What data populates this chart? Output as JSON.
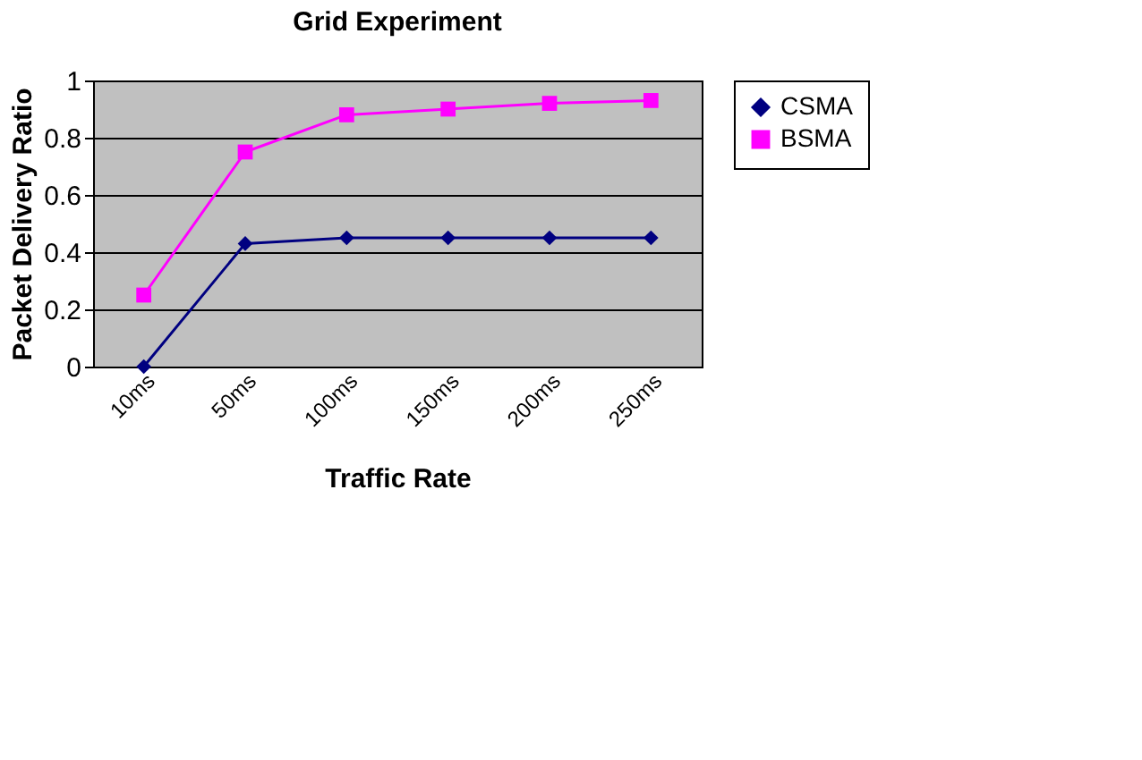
{
  "chart_data": {
    "type": "line",
    "title": "Grid Experiment",
    "xlabel": "Traffic Rate",
    "ylabel": "Packet Delivery Ratio",
    "categories": [
      "10ms",
      "50ms",
      "100ms",
      "150ms",
      "200ms",
      "250ms"
    ],
    "series": [
      {
        "name": "CSMA",
        "color": "#000080",
        "marker": "diamond",
        "values": [
          0,
          0.43,
          0.45,
          0.45,
          0.45,
          0.45
        ]
      },
      {
        "name": "BSMA",
        "color": "#ff00ff",
        "marker": "square",
        "values": [
          0.25,
          0.75,
          0.88,
          0.9,
          0.92,
          0.93
        ]
      }
    ],
    "ylim": [
      0,
      1
    ],
    "yticks": [
      0,
      0.2,
      0.4,
      0.6,
      0.8,
      1
    ],
    "grid": "y",
    "legend": "right"
  }
}
